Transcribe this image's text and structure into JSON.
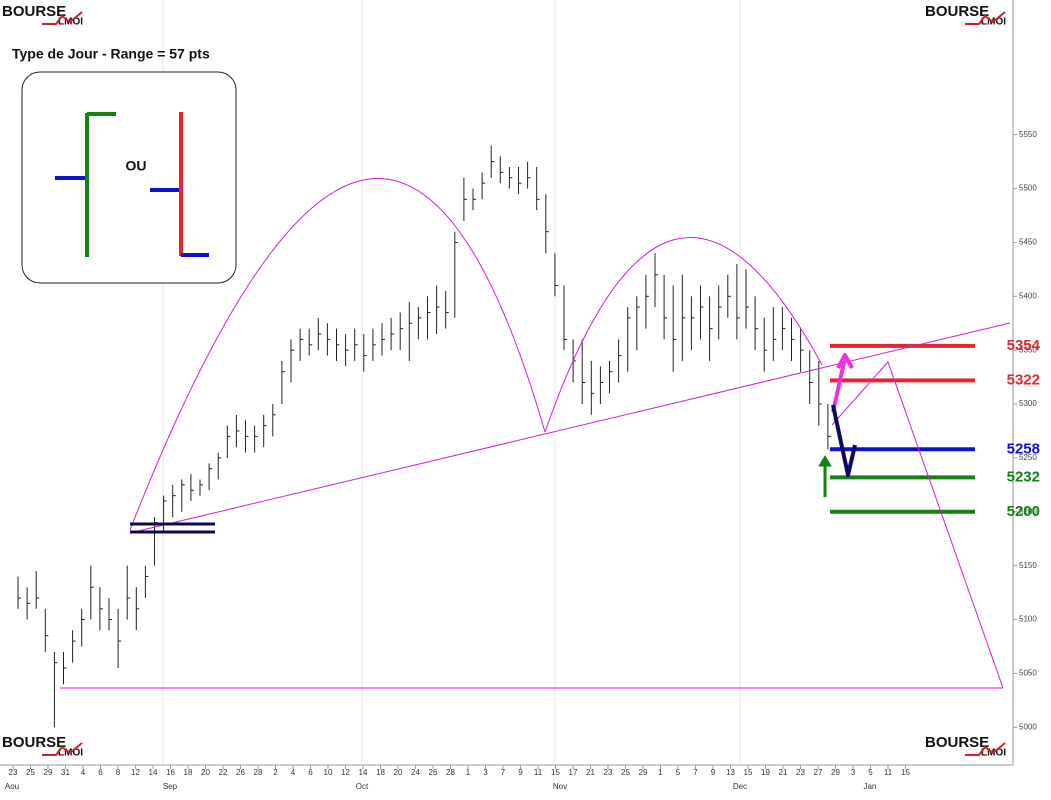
{
  "chart_data": {
    "type": "ohlc",
    "title": "Type de Jour - Range = 57 pts",
    "inset_text": "OU",
    "logo": {
      "text": "BOURSE",
      "sub": "LMOI"
    },
    "ylim": [
      4965,
      5675
    ],
    "yticks": [
      5000,
      5050,
      5100,
      5150,
      5200,
      5250,
      5300,
      5350,
      5400,
      5450,
      5500,
      5550
    ],
    "x_tick_labels": [
      "23",
      "25",
      "29",
      "31",
      "4",
      "6",
      "8",
      "12",
      "14",
      "16",
      "18",
      "20",
      "22",
      "26",
      "28",
      "2",
      "4",
      "6",
      "10",
      "12",
      "14",
      "18",
      "20",
      "24",
      "26",
      "28",
      "1",
      "3",
      "7",
      "9",
      "11",
      "15",
      "17",
      "21",
      "23",
      "25",
      "29",
      "1",
      "5",
      "7",
      "9",
      "13",
      "15",
      "19",
      "21",
      "23",
      "27",
      "29",
      "3",
      "5",
      "11",
      "15"
    ],
    "months": [
      "Aou",
      "Sep",
      "Oct",
      "Nov",
      "Dec",
      "Jan"
    ],
    "color": "#222222",
    "high": [
      5140,
      5130,
      5145,
      5110,
      5070,
      5070,
      5090,
      5110,
      5150,
      5130,
      5120,
      5110,
      5150,
      5130,
      5150,
      5195,
      5215,
      5225,
      5230,
      5235,
      5230,
      5245,
      5255,
      5280,
      5290,
      5285,
      5280,
      5290,
      5300,
      5340,
      5360,
      5370,
      5370,
      5380,
      5375,
      5370,
      5365,
      5370,
      5365,
      5370,
      5375,
      5380,
      5385,
      5395,
      5390,
      5400,
      5410,
      5405,
      5460,
      5510,
      5500,
      5515,
      5540,
      5530,
      5520,
      5520,
      5525,
      5520,
      5495,
      5440,
      5410,
      5360,
      5360,
      5340,
      5335,
      5340,
      5360,
      5390,
      5400,
      5420,
      5440,
      5420,
      5410,
      5420,
      5400,
      5410,
      5400,
      5410,
      5420,
      5430,
      5425,
      5400,
      5380,
      5390,
      5390,
      5380,
      5370,
      5350,
      5340,
      5300
    ],
    "low": [
      5110,
      5100,
      5110,
      5070,
      5000,
      5040,
      5060,
      5075,
      5100,
      5090,
      5090,
      5055,
      5100,
      5090,
      5120,
      5150,
      5180,
      5195,
      5200,
      5210,
      5215,
      5220,
      5230,
      5250,
      5260,
      5255,
      5255,
      5260,
      5270,
      5300,
      5320,
      5340,
      5345,
      5350,
      5345,
      5340,
      5335,
      5340,
      5330,
      5340,
      5345,
      5350,
      5350,
      5340,
      5360,
      5360,
      5365,
      5370,
      5380,
      5470,
      5480,
      5490,
      5510,
      5505,
      5500,
      5495,
      5500,
      5480,
      5440,
      5400,
      5350,
      5320,
      5300,
      5290,
      5300,
      5310,
      5320,
      5330,
      5350,
      5370,
      5390,
      5360,
      5330,
      5340,
      5350,
      5360,
      5340,
      5360,
      5380,
      5360,
      5370,
      5350,
      5330,
      5340,
      5350,
      5340,
      5330,
      5300,
      5280,
      5258
    ],
    "close": [
      5120,
      5115,
      5120,
      5085,
      5060,
      5055,
      5080,
      5100,
      5130,
      5110,
      5100,
      5080,
      5120,
      5110,
      5140,
      5190,
      5210,
      5215,
      5225,
      5220,
      5225,
      5240,
      5250,
      5270,
      5275,
      5270,
      5270,
      5280,
      5290,
      5330,
      5350,
      5360,
      5355,
      5365,
      5360,
      5355,
      5350,
      5355,
      5345,
      5355,
      5360,
      5365,
      5370,
      5375,
      5380,
      5385,
      5390,
      5385,
      5450,
      5490,
      5490,
      5505,
      5525,
      5515,
      5510,
      5505,
      5510,
      5490,
      5460,
      5410,
      5360,
      5340,
      5320,
      5310,
      5320,
      5330,
      5345,
      5380,
      5390,
      5400,
      5420,
      5380,
      5360,
      5380,
      5380,
      5390,
      5370,
      5390,
      5400,
      5380,
      5390,
      5370,
      5350,
      5360,
      5370,
      5360,
      5350,
      5320,
      5300,
      5270
    ],
    "levels": [
      {
        "value": 5354,
        "color": "#e3262f"
      },
      {
        "value": 5322,
        "color": "#e3262f"
      },
      {
        "value": 5258,
        "color": "#1010d0"
      },
      {
        "value": 5232,
        "color": "#128212"
      },
      {
        "value": 5200,
        "color": "#128212"
      }
    ]
  }
}
